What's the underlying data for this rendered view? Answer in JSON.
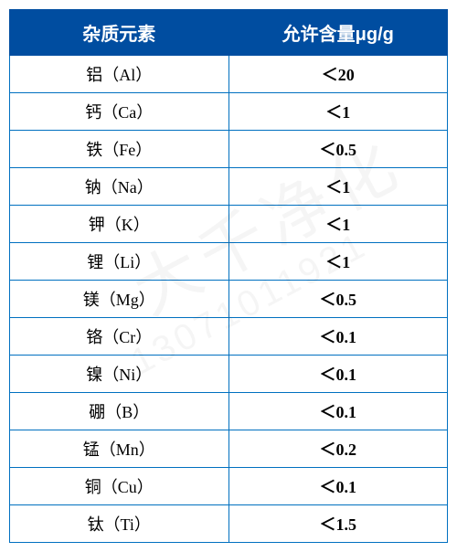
{
  "table": {
    "header_bg": "#004da0",
    "header_fg": "#ffffff",
    "border_color": "#0070c0",
    "header_fontsize": 20,
    "cell_fontsize": 18,
    "columns": [
      {
        "label": "杂质元素"
      },
      {
        "label": "允许含量μg/g"
      }
    ],
    "rows": [
      {
        "element": "铝（Al）",
        "limit": "＜20"
      },
      {
        "element": "钙（Ca）",
        "limit": "＜1"
      },
      {
        "element": "铁（Fe）",
        "limit": "＜0.5"
      },
      {
        "element": "钠（Na）",
        "limit": "＜1"
      },
      {
        "element": "钾（K）",
        "limit": "＜1"
      },
      {
        "element": "锂（Li）",
        "limit": "＜1"
      },
      {
        "element": "镁（Mg）",
        "limit": "＜0.5"
      },
      {
        "element": "铬（Cr）",
        "limit": "＜0.1"
      },
      {
        "element": "镍（Ni）",
        "limit": "＜0.1"
      },
      {
        "element": "硼（B）",
        "limit": "＜0.1"
      },
      {
        "element": "锰（Mn）",
        "limit": "＜0.2"
      },
      {
        "element": "铜（Cu）",
        "limit": "＜0.1"
      },
      {
        "element": "钛（Ti）",
        "limit": "＜1.5"
      }
    ]
  },
  "watermark": {
    "text": "大千净化",
    "phone": "13071011921",
    "color": "rgba(0,0,0,0.04)"
  }
}
